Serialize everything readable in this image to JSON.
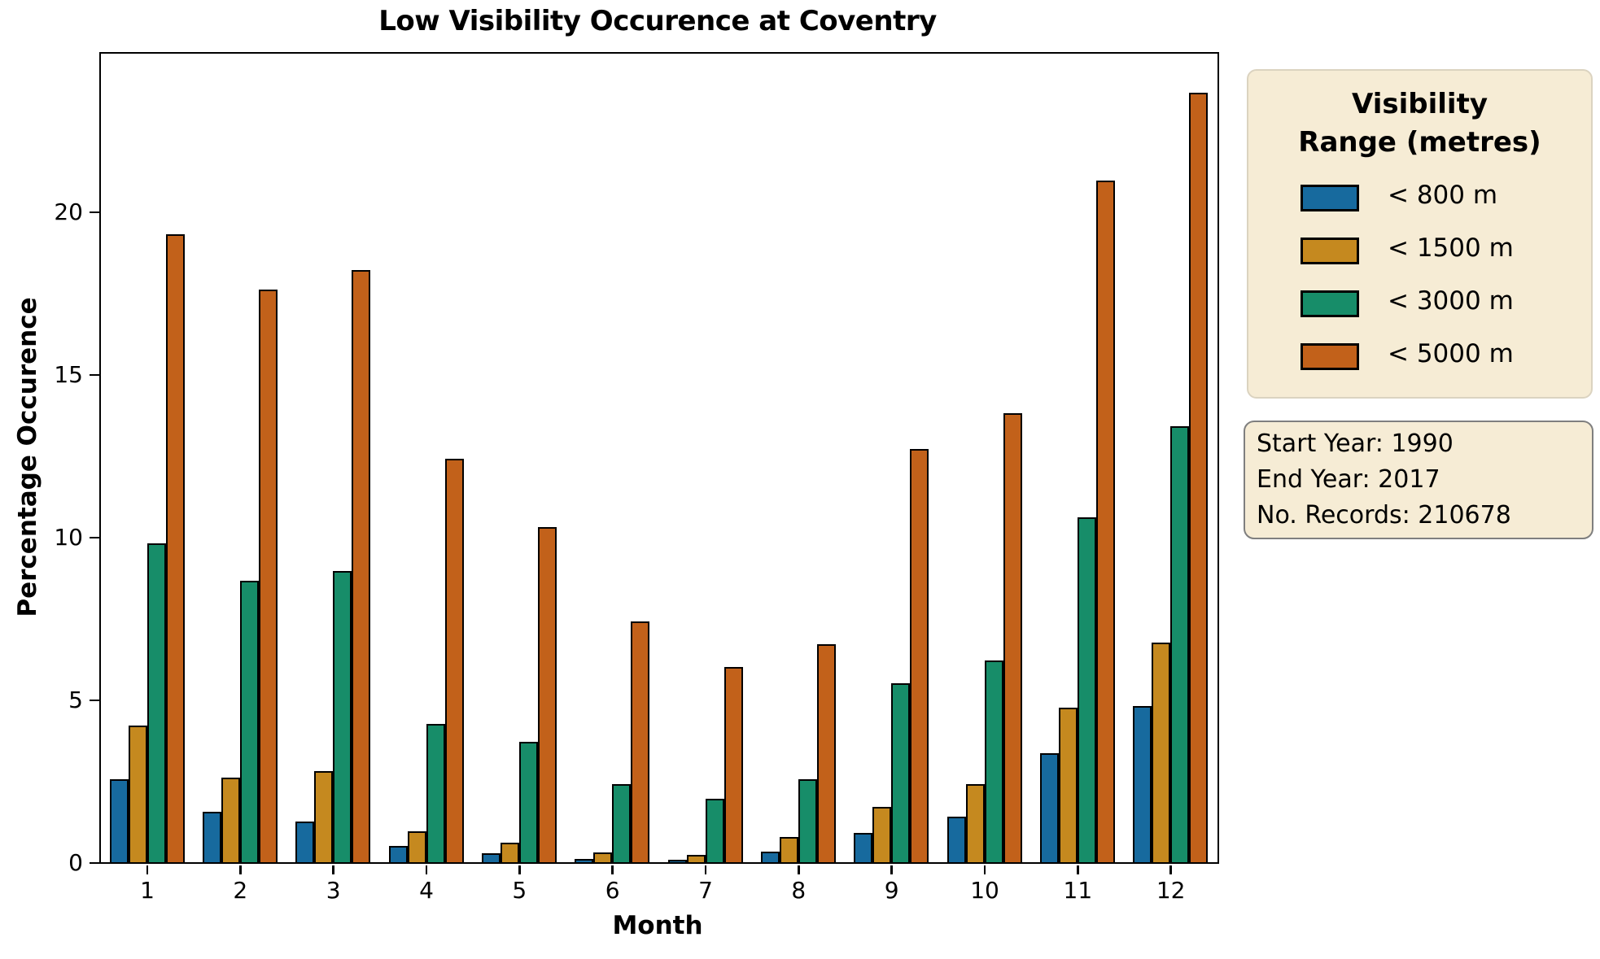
{
  "title": "Low Visibility Occurence at Coventry",
  "axes": {
    "xlabel": "Month",
    "ylabel": "Percentage Occurence",
    "yticks": [
      0,
      5,
      10,
      15,
      20
    ],
    "xticks": [
      1,
      2,
      3,
      4,
      5,
      6,
      7,
      8,
      9,
      10,
      11,
      12
    ]
  },
  "legend": {
    "title_line1": "Visibility",
    "title_line2": "Range (metres)",
    "entries": [
      {
        "label": "< 800 m",
        "color": "#176a9e"
      },
      {
        "label": "< 1500 m",
        "color": "#c5891f"
      },
      {
        "label": "< 3000 m",
        "color": "#178d69"
      },
      {
        "label": "< 5000 m",
        "color": "#c2611a"
      }
    ]
  },
  "info_box": {
    "lines": [
      "Start Year: 1990",
      "End Year: 2017",
      "No. Records: 210678"
    ]
  },
  "colors": {
    "bar_edge": "#000000",
    "box_background": "#f6ecd5",
    "legend_border": "#dbd3c0",
    "info_border": "#7f7f7f"
  },
  "chart_data": {
    "type": "bar",
    "title": "Low Visibility Occurence at Coventry",
    "xlabel": "Month",
    "ylabel": "Percentage Occurence",
    "categories": [
      1,
      2,
      3,
      4,
      5,
      6,
      7,
      8,
      9,
      10,
      11,
      12
    ],
    "series": [
      {
        "name": "< 800 m",
        "color": "#176a9e",
        "values": [
          2.55,
          1.55,
          1.25,
          0.5,
          0.27,
          0.1,
          0.08,
          0.33,
          0.9,
          1.4,
          3.35,
          4.8
        ]
      },
      {
        "name": "< 1500 m",
        "color": "#c5891f",
        "values": [
          4.2,
          2.6,
          2.8,
          0.95,
          0.6,
          0.3,
          0.22,
          0.78,
          1.7,
          2.4,
          4.75,
          6.75
        ]
      },
      {
        "name": "< 3000 m",
        "color": "#178d69",
        "values": [
          9.8,
          8.65,
          8.95,
          4.25,
          3.7,
          2.4,
          1.95,
          2.55,
          5.5,
          6.2,
          10.6,
          13.4
        ]
      },
      {
        "name": "< 5000 m",
        "color": "#c2611a",
        "values": [
          19.3,
          17.6,
          18.2,
          12.4,
          10.3,
          7.4,
          6.0,
          6.7,
          12.7,
          13.8,
          20.95,
          23.65
        ]
      }
    ],
    "ylim": [
      0,
      24.85
    ],
    "yticks": [
      0,
      5,
      10,
      15,
      20
    ],
    "grid": false,
    "legend_title": "Visibility Range (metres)",
    "legend_position": "outside-upper-right",
    "annotations": [
      "Start Year: 1990",
      "End Year: 2017",
      "No. Records: 210678"
    ]
  }
}
